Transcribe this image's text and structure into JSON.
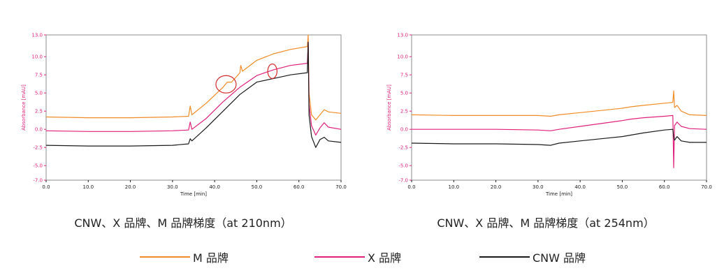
{
  "chart_data": [
    {
      "type": "line",
      "title": "CNW、X 品牌、M 品牌梯度（at 210nm）",
      "xlabel": "Time [min]",
      "ylabel": "Absorbance [mAU]",
      "xlim": [
        0,
        70
      ],
      "ylim": [
        -7,
        13
      ],
      "xticks": [
        "0.0",
        "10.0",
        "20.0",
        "30.0",
        "40.0",
        "50.0",
        "60.0",
        "70.0"
      ],
      "yticks": [
        "-7.0",
        "-5.0",
        "-2.5",
        "0.0",
        "2.5",
        "5.0",
        "7.5",
        "10.0",
        "13.0"
      ],
      "series": [
        {
          "name": "M 品牌",
          "color": "#f08c28",
          "x": [
            0,
            10,
            20,
            30,
            33.8,
            34.2,
            34.6,
            38,
            42,
            43,
            44,
            46,
            46.2,
            46.6,
            50,
            54,
            58,
            62,
            62.2,
            62.4,
            63,
            64,
            65,
            66,
            67,
            70
          ],
          "y": [
            1.7,
            1.6,
            1.6,
            1.7,
            1.8,
            3.2,
            2.0,
            3.6,
            5.8,
            6.5,
            6.5,
            7.8,
            8.8,
            8.0,
            9.5,
            10.4,
            11.0,
            11.4,
            13.0,
            5.0,
            2.0,
            1.3,
            2.0,
            2.7,
            2.4,
            2.2
          ]
        },
        {
          "name": "X 品牌",
          "color": "#e0207c",
          "x": [
            0,
            10,
            20,
            30,
            33.8,
            34.2,
            34.6,
            38,
            42,
            46,
            50,
            54,
            58,
            62,
            62.2,
            62.4,
            63,
            64,
            65,
            66,
            67,
            70
          ],
          "y": [
            -0.2,
            -0.3,
            -0.3,
            -0.2,
            -0.1,
            1.0,
            0.0,
            1.5,
            3.8,
            5.8,
            7.4,
            8.2,
            8.8,
            9.1,
            12.0,
            3.5,
            0.5,
            -0.8,
            0.2,
            0.9,
            0.3,
            0.0
          ]
        },
        {
          "name": "CNW 品牌",
          "color": "#1a1a1a",
          "x": [
            0,
            10,
            20,
            30,
            33.8,
            34.2,
            34.6,
            38,
            42,
            46,
            50,
            54,
            58,
            62,
            62.2,
            62.4,
            63,
            64,
            65,
            66,
            67,
            70
          ],
          "y": [
            -2.2,
            -2.3,
            -2.3,
            -2.2,
            -2.0,
            -1.3,
            -1.6,
            0.2,
            2.5,
            4.8,
            6.5,
            7.0,
            7.5,
            7.8,
            12.0,
            2.0,
            -1.0,
            -2.5,
            -1.4,
            -1.1,
            -1.6,
            -1.8
          ]
        }
      ],
      "annotations": [
        {
          "shape": "ellipse",
          "x": 42.7,
          "y": 6.2,
          "rx": 2.4,
          "ry": 1.2,
          "color": "#d42a2a"
        },
        {
          "shape": "ellipse",
          "x": 53.7,
          "y": 8.0,
          "rx": 1.1,
          "ry": 1.0,
          "color": "#d42a2a"
        }
      ]
    },
    {
      "type": "line",
      "title": "CNW、X 品牌、M 品牌梯度（at 254nm）",
      "xlabel": "Time [min]",
      "ylabel": "Absorbance [mAU]",
      "xlim": [
        0,
        70
      ],
      "ylim": [
        -7,
        13
      ],
      "xticks": [
        "0.0",
        "10.0",
        "20.0",
        "30.0",
        "40.0",
        "50.0",
        "60.0",
        "70.0"
      ],
      "yticks": [
        "-7.0",
        "-5.0",
        "-2.5",
        "0.0",
        "2.5",
        "5.0",
        "7.5",
        "10.0",
        "13.0"
      ],
      "series": [
        {
          "name": "M 品牌",
          "color": "#f08c28",
          "x": [
            0,
            10,
            20,
            30,
            33,
            35,
            40,
            45,
            50,
            52,
            55,
            60,
            62,
            62.2,
            62.4,
            63,
            64,
            66,
            70
          ],
          "y": [
            2.0,
            1.9,
            1.9,
            1.9,
            1.8,
            2.0,
            2.3,
            2.6,
            2.9,
            3.1,
            3.3,
            3.6,
            3.7,
            5.3,
            3.0,
            3.3,
            2.5,
            2.0,
            1.9
          ]
        },
        {
          "name": "X 品牌",
          "color": "#e0207c",
          "x": [
            0,
            10,
            20,
            30,
            33,
            35,
            40,
            45,
            50,
            52,
            55,
            60,
            62,
            62.2,
            62.4,
            63,
            64,
            66,
            70
          ],
          "y": [
            0.0,
            0.0,
            0.0,
            -0.1,
            -0.2,
            0.0,
            0.4,
            0.8,
            1.2,
            1.4,
            1.6,
            1.8,
            1.9,
            -5.3,
            0.5,
            1.0,
            0.4,
            0.1,
            0.0
          ]
        },
        {
          "name": "CNW 品牌",
          "color": "#1a1a1a",
          "x": [
            0,
            10,
            20,
            30,
            33,
            35,
            40,
            45,
            50,
            52,
            55,
            60,
            62,
            62.2,
            62.4,
            63,
            64,
            66,
            70
          ],
          "y": [
            -1.9,
            -2.0,
            -2.0,
            -2.1,
            -2.2,
            -1.9,
            -1.6,
            -1.3,
            -1.0,
            -0.8,
            -0.5,
            -0.1,
            0.0,
            -1.0,
            -1.5,
            -1.0,
            -1.6,
            -1.8,
            -1.8
          ]
        }
      ]
    }
  ],
  "captions": {
    "left": "CNW、X 品牌、M 品牌梯度（at 210nm）",
    "right": "CNW、X 品牌、M 品牌梯度（at 254nm）"
  },
  "legend": [
    {
      "label": "M 品牌",
      "color": "#f08c28"
    },
    {
      "label": "X 品牌",
      "color": "#e0207c"
    },
    {
      "label": "CNW 品牌",
      "color": "#1a1a1a"
    }
  ]
}
